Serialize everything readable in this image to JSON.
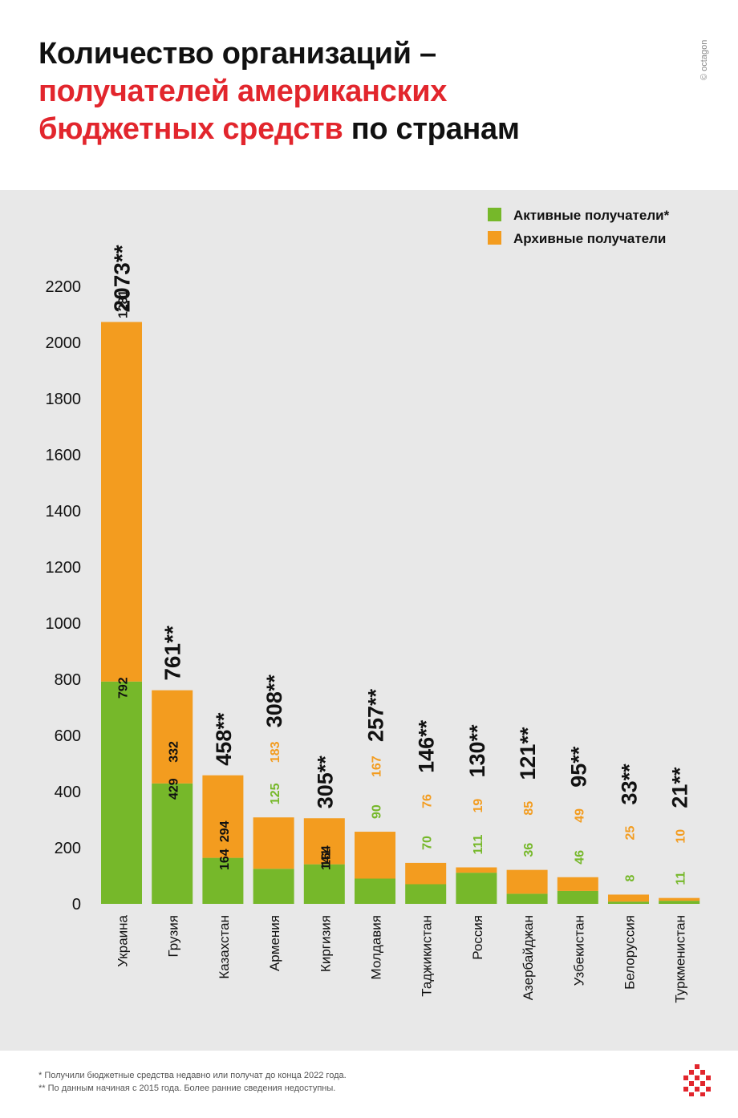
{
  "title": {
    "line1": "Количество организаций –",
    "line2_red": "получателей американских",
    "line3_red": "бюджетных средств",
    "line3_black": " по странам"
  },
  "copyright": "© octagon",
  "colors": {
    "active": "#76b82a",
    "archived": "#f39c1f",
    "accent": "#e2262d",
    "background": "#e8e8e8"
  },
  "chart_data": {
    "type": "bar",
    "stacked": true,
    "categories": [
      "Украина",
      "Грузия",
      "Казахстан",
      "Армения",
      "Киргизия",
      "Молдавия",
      "Таджикистан",
      "Россия",
      "Азербайджан",
      "Узбекистан",
      "Белоруссия",
      "Туркменистан"
    ],
    "series": [
      {
        "name": "Активные получатели*",
        "values": [
          792,
          429,
          164,
          125,
          141,
          90,
          70,
          111,
          36,
          46,
          8,
          11
        ]
      },
      {
        "name": "Архивные получатели",
        "values": [
          1281,
          332,
          294,
          183,
          164,
          167,
          76,
          19,
          85,
          49,
          25,
          10
        ]
      }
    ],
    "totals": [
      "2073**",
      "761**",
      "458**",
      "308**",
      "305**",
      "257**",
      "146**",
      "130**",
      "121**",
      "95**",
      "33**",
      "21**"
    ],
    "ylim": [
      0,
      2200
    ],
    "yticks": [
      0,
      200,
      400,
      600,
      800,
      1000,
      1200,
      1400,
      1600,
      1800,
      2000,
      2200
    ],
    "legend_position": "top-right",
    "grid": false
  },
  "footnotes": [
    "* Получили бюджетные средства недавно или получат до конца 2022 года.",
    "** По данным начиная с 2015 года. Более ранние сведения недоступны."
  ],
  "logo_icon": "octagon-logo-icon"
}
